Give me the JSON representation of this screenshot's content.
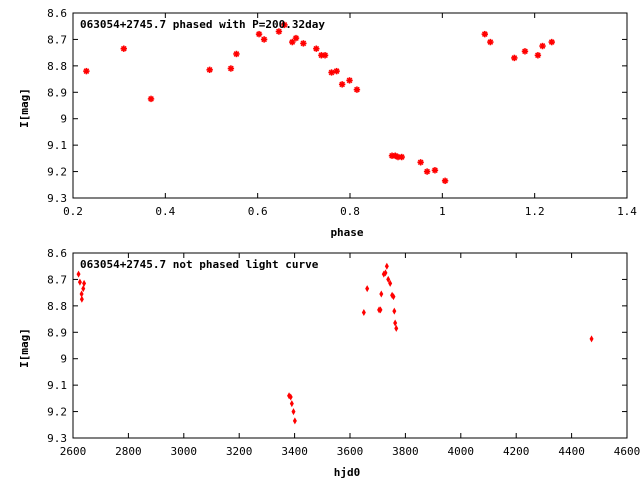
{
  "chart_data": [
    {
      "type": "scatter",
      "title": "063054+2745.7 phased with P=200.32day",
      "xlabel": "phase",
      "ylabel": "I[mag]",
      "xlim": [
        0.2,
        1.4
      ],
      "ylim": [
        8.6,
        9.3
      ],
      "y_inverted": true,
      "x_ticks": [
        0.2,
        0.4,
        0.6,
        0.8,
        1,
        1.2,
        1.4
      ],
      "x_tick_labels": [
        "0.2",
        "0.4",
        "0.6",
        "0.8",
        "1",
        "1.2",
        "1.4"
      ],
      "y_ticks": [
        8.6,
        8.7,
        8.8,
        8.9,
        9,
        9.1,
        9.2,
        9.3
      ],
      "y_tick_labels": [
        "8.6",
        "8.7",
        "8.8",
        "8.9",
        "9",
        "9.1",
        "9.2",
        "9.3"
      ],
      "marker": "star",
      "marker_color": "#ff0000",
      "grid": false,
      "points": [
        [
          0.229,
          8.82
        ],
        [
          0.31,
          8.735
        ],
        [
          0.369,
          8.925
        ],
        [
          0.496,
          8.815
        ],
        [
          0.542,
          8.81
        ],
        [
          0.554,
          8.755
        ],
        [
          0.603,
          8.68
        ],
        [
          0.614,
          8.7
        ],
        [
          0.646,
          8.67
        ],
        [
          0.658,
          8.645
        ],
        [
          0.675,
          8.71
        ],
        [
          0.683,
          8.695
        ],
        [
          0.699,
          8.715
        ],
        [
          0.727,
          8.735
        ],
        [
          0.738,
          8.76
        ],
        [
          0.746,
          8.76
        ],
        [
          0.76,
          8.825
        ],
        [
          0.771,
          8.82
        ],
        [
          0.783,
          8.87
        ],
        [
          0.799,
          8.855
        ],
        [
          0.815,
          8.89
        ],
        [
          0.891,
          9.14
        ],
        [
          0.898,
          9.14
        ],
        [
          0.904,
          9.145
        ],
        [
          0.912,
          9.145
        ],
        [
          0.953,
          9.165
        ],
        [
          0.967,
          9.2
        ],
        [
          0.984,
          9.195
        ],
        [
          1.006,
          9.235
        ],
        [
          1.092,
          8.68
        ],
        [
          1.104,
          8.71
        ],
        [
          1.156,
          8.77
        ],
        [
          1.179,
          8.745
        ],
        [
          1.207,
          8.76
        ],
        [
          1.217,
          8.725
        ],
        [
          1.237,
          8.71
        ]
      ]
    },
    {
      "type": "scatter",
      "title": "063054+2745.7 not phased light curve",
      "xlabel": "hjd0",
      "ylabel": "I[mag]",
      "xlim": [
        2600,
        4600
      ],
      "ylim": [
        8.6,
        9.3
      ],
      "y_inverted": true,
      "x_ticks": [
        2600,
        2800,
        3000,
        3200,
        3400,
        3600,
        3800,
        4000,
        4200,
        4400,
        4600
      ],
      "x_tick_labels": [
        "2600",
        "2800",
        "3000",
        "3200",
        "3400",
        "3600",
        "3800",
        "4000",
        "4200",
        "4400",
        "4600"
      ],
      "y_ticks": [
        8.6,
        8.7,
        8.8,
        8.9,
        9,
        9.1,
        9.2,
        9.3
      ],
      "y_tick_labels": [
        "8.6",
        "8.7",
        "8.8",
        "8.9",
        "9",
        "9.1",
        "9.2",
        "9.3"
      ],
      "marker": "diamond",
      "marker_color": "#ff0000",
      "grid": false,
      "points": [
        [
          2620,
          8.68
        ],
        [
          2625,
          8.71
        ],
        [
          2631,
          8.755
        ],
        [
          2632,
          8.775
        ],
        [
          2637,
          8.735
        ],
        [
          2640,
          8.715
        ],
        [
          3380,
          9.14
        ],
        [
          3386,
          9.145
        ],
        [
          3390,
          9.17
        ],
        [
          3396,
          9.2
        ],
        [
          3401,
          9.235
        ],
        [
          3650,
          8.825
        ],
        [
          3662,
          8.735
        ],
        [
          3705,
          8.815
        ],
        [
          3710,
          8.815
        ],
        [
          3713,
          8.755
        ],
        [
          3722,
          8.68
        ],
        [
          3728,
          8.675
        ],
        [
          3733,
          8.65
        ],
        [
          3738,
          8.7
        ],
        [
          3745,
          8.715
        ],
        [
          3752,
          8.76
        ],
        [
          3757,
          8.765
        ],
        [
          3760,
          8.82
        ],
        [
          3763,
          8.865
        ],
        [
          3767,
          8.885
        ],
        [
          4472,
          8.925
        ]
      ]
    }
  ]
}
